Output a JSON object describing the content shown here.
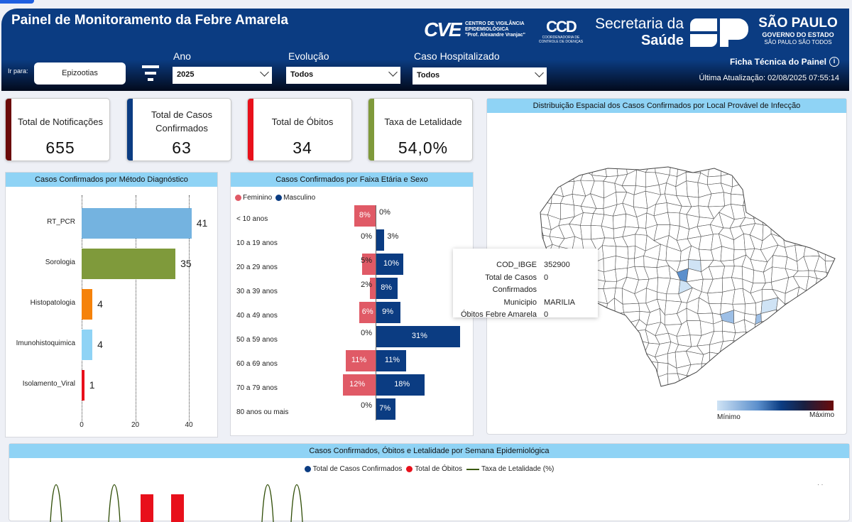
{
  "header": {
    "title": "Painel de Monitoramento da Febre Amarela",
    "goto_label": "Ir para:",
    "goto_button": "Epizootias",
    "filters": [
      {
        "label": "Ano",
        "value": "2025"
      },
      {
        "label": "Evolução",
        "value": "Todos"
      },
      {
        "label": "Caso Hospitalizado",
        "value": "Todos"
      }
    ],
    "logos": {
      "cve": "CVE",
      "cve_text1": "CENTRO DE VIGILÂNCIA",
      "cve_text2": "EPIDEMIOLÓGICA",
      "cve_text3": "\"Prof. Alexandre Vranjac\"",
      "ccd": "CCD",
      "ccd_text1": "COORDENADORIA DE",
      "ccd_text2": "CONTROLE DE DOENÇAS",
      "secretaria1": "Secretaria da",
      "secretaria2": "Saúde",
      "sp1": "SÃO PAULO",
      "sp2": "GOVERNO DO ESTADO",
      "sp3": "SÃO PAULO SÃO TODOS"
    },
    "ficha": "Ficha Técnica do Painel",
    "update": "Última Atualização: 02/08/2025 07:55:14"
  },
  "kpis": [
    {
      "label": "Total de Notificações",
      "value": "655",
      "color": "#6b0a0a"
    },
    {
      "label": "Total de Casos Confirmados",
      "value": "63",
      "color": "#0b3c82"
    },
    {
      "label": "Total de Óbitos",
      "value": "34",
      "color": "#e8101b"
    },
    {
      "label": "Taxa de Letalidade",
      "value": "54,0%",
      "color": "#7f9a3b"
    }
  ],
  "chart_data": [
    {
      "type": "bar",
      "title": "Casos Confirmados por Método Diagnóstico",
      "categories": [
        "RT_PCR",
        "Sorologia",
        "Histopatologia",
        "Imunohistoquimica",
        "Isolamento_Viral"
      ],
      "values": [
        41,
        35,
        4,
        4,
        1
      ],
      "colors": [
        "#74b3e0",
        "#7f9a3b",
        "#f5820a",
        "#8fd3f5",
        "#e8101b"
      ],
      "xticks": [
        "0",
        "20",
        "40"
      ],
      "xlim": [
        0,
        40
      ]
    },
    {
      "type": "bar",
      "title": "Casos Confirmados por Faixa Etária e Sexo",
      "categories": [
        "< 10 anos",
        "10 a 19 anos",
        "20 a 29 anos",
        "30 a 39 anos",
        "40 a 49 anos",
        "50 a 59 anos",
        "60 a 69 anos",
        "70 a 79 anos",
        "80 anos ou mais"
      ],
      "series": [
        {
          "name": "Feminino",
          "color": "#e05a66",
          "values": [
            8,
            0,
            5,
            2,
            6,
            0,
            11,
            12,
            0
          ],
          "labels": [
            "8%",
            "0%",
            "5%",
            "2%",
            "6%",
            "0%",
            "11%",
            "12%",
            "0%"
          ]
        },
        {
          "name": "Masculino",
          "color": "#0b3c82",
          "values": [
            0,
            3,
            10,
            8,
            9,
            31,
            11,
            18,
            7
          ],
          "labels": [
            "0%",
            "3%",
            "10%",
            "8%",
            "9%",
            "31%",
            "11%",
            "18%",
            "7%"
          ]
        }
      ]
    },
    {
      "type": "line",
      "title": "Casos Confirmados, Óbitos e Letalidade por Semana Epidemiológica",
      "legend": [
        {
          "name": "Total de Casos Confirmados",
          "color": "#0b3c82"
        },
        {
          "name": "Total de Óbitos",
          "color": "#e8101b"
        },
        {
          "name": "Taxa de Letalidade (%)",
          "color": "#3a5a0a"
        }
      ]
    }
  ],
  "map": {
    "title": "Distribuição Espacial dos Casos Confirmados por Local Provável de Infecção",
    "legend_min": "Mínimo",
    "legend_max": "Máximo",
    "tooltip": [
      {
        "k": "COD_IBGE",
        "v": "352900"
      },
      {
        "k": "Total de Casos Confirmados",
        "v": "0"
      },
      {
        "k": "Municipio",
        "v": "MARILIA"
      },
      {
        "k": "Óbitos Febre Amarela",
        "v": "0"
      }
    ]
  }
}
